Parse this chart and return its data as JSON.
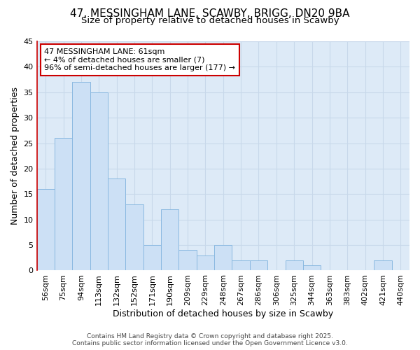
{
  "title_line1": "47, MESSINGHAM LANE, SCAWBY, BRIGG, DN20 9BA",
  "title_line2": "Size of property relative to detached houses in Scawby",
  "xlabel": "Distribution of detached houses by size in Scawby",
  "ylabel": "Number of detached properties",
  "bar_labels": [
    "56sqm",
    "75sqm",
    "94sqm",
    "113sqm",
    "132sqm",
    "152sqm",
    "171sqm",
    "190sqm",
    "209sqm",
    "229sqm",
    "248sqm",
    "267sqm",
    "286sqm",
    "306sqm",
    "325sqm",
    "344sqm",
    "363sqm",
    "383sqm",
    "402sqm",
    "421sqm",
    "440sqm"
  ],
  "bar_values": [
    16,
    26,
    37,
    35,
    18,
    13,
    5,
    12,
    4,
    3,
    5,
    2,
    2,
    0,
    2,
    1,
    0,
    0,
    0,
    2,
    0
  ],
  "bar_color": "#cce0f5",
  "bar_edge_color": "#89b8e0",
  "annotation_text": "47 MESSINGHAM LANE: 61sqm\n← 4% of detached houses are smaller (7)\n96% of semi-detached houses are larger (177) →",
  "annotation_box_color": "#ffffff",
  "annotation_box_edge_color": "#cc0000",
  "left_spine_color": "#cc0000",
  "ylim": [
    0,
    45
  ],
  "yticks": [
    0,
    5,
    10,
    15,
    20,
    25,
    30,
    35,
    40,
    45
  ],
  "grid_color": "#c8d8ea",
  "background_color": "#ddeaf7",
  "footer_text": "Contains HM Land Registry data © Crown copyright and database right 2025.\nContains public sector information licensed under the Open Government Licence v3.0.",
  "title_fontsize": 11,
  "subtitle_fontsize": 9.5,
  "axis_label_fontsize": 9,
  "tick_fontsize": 8,
  "annotation_fontsize": 8,
  "footer_fontsize": 6.5
}
